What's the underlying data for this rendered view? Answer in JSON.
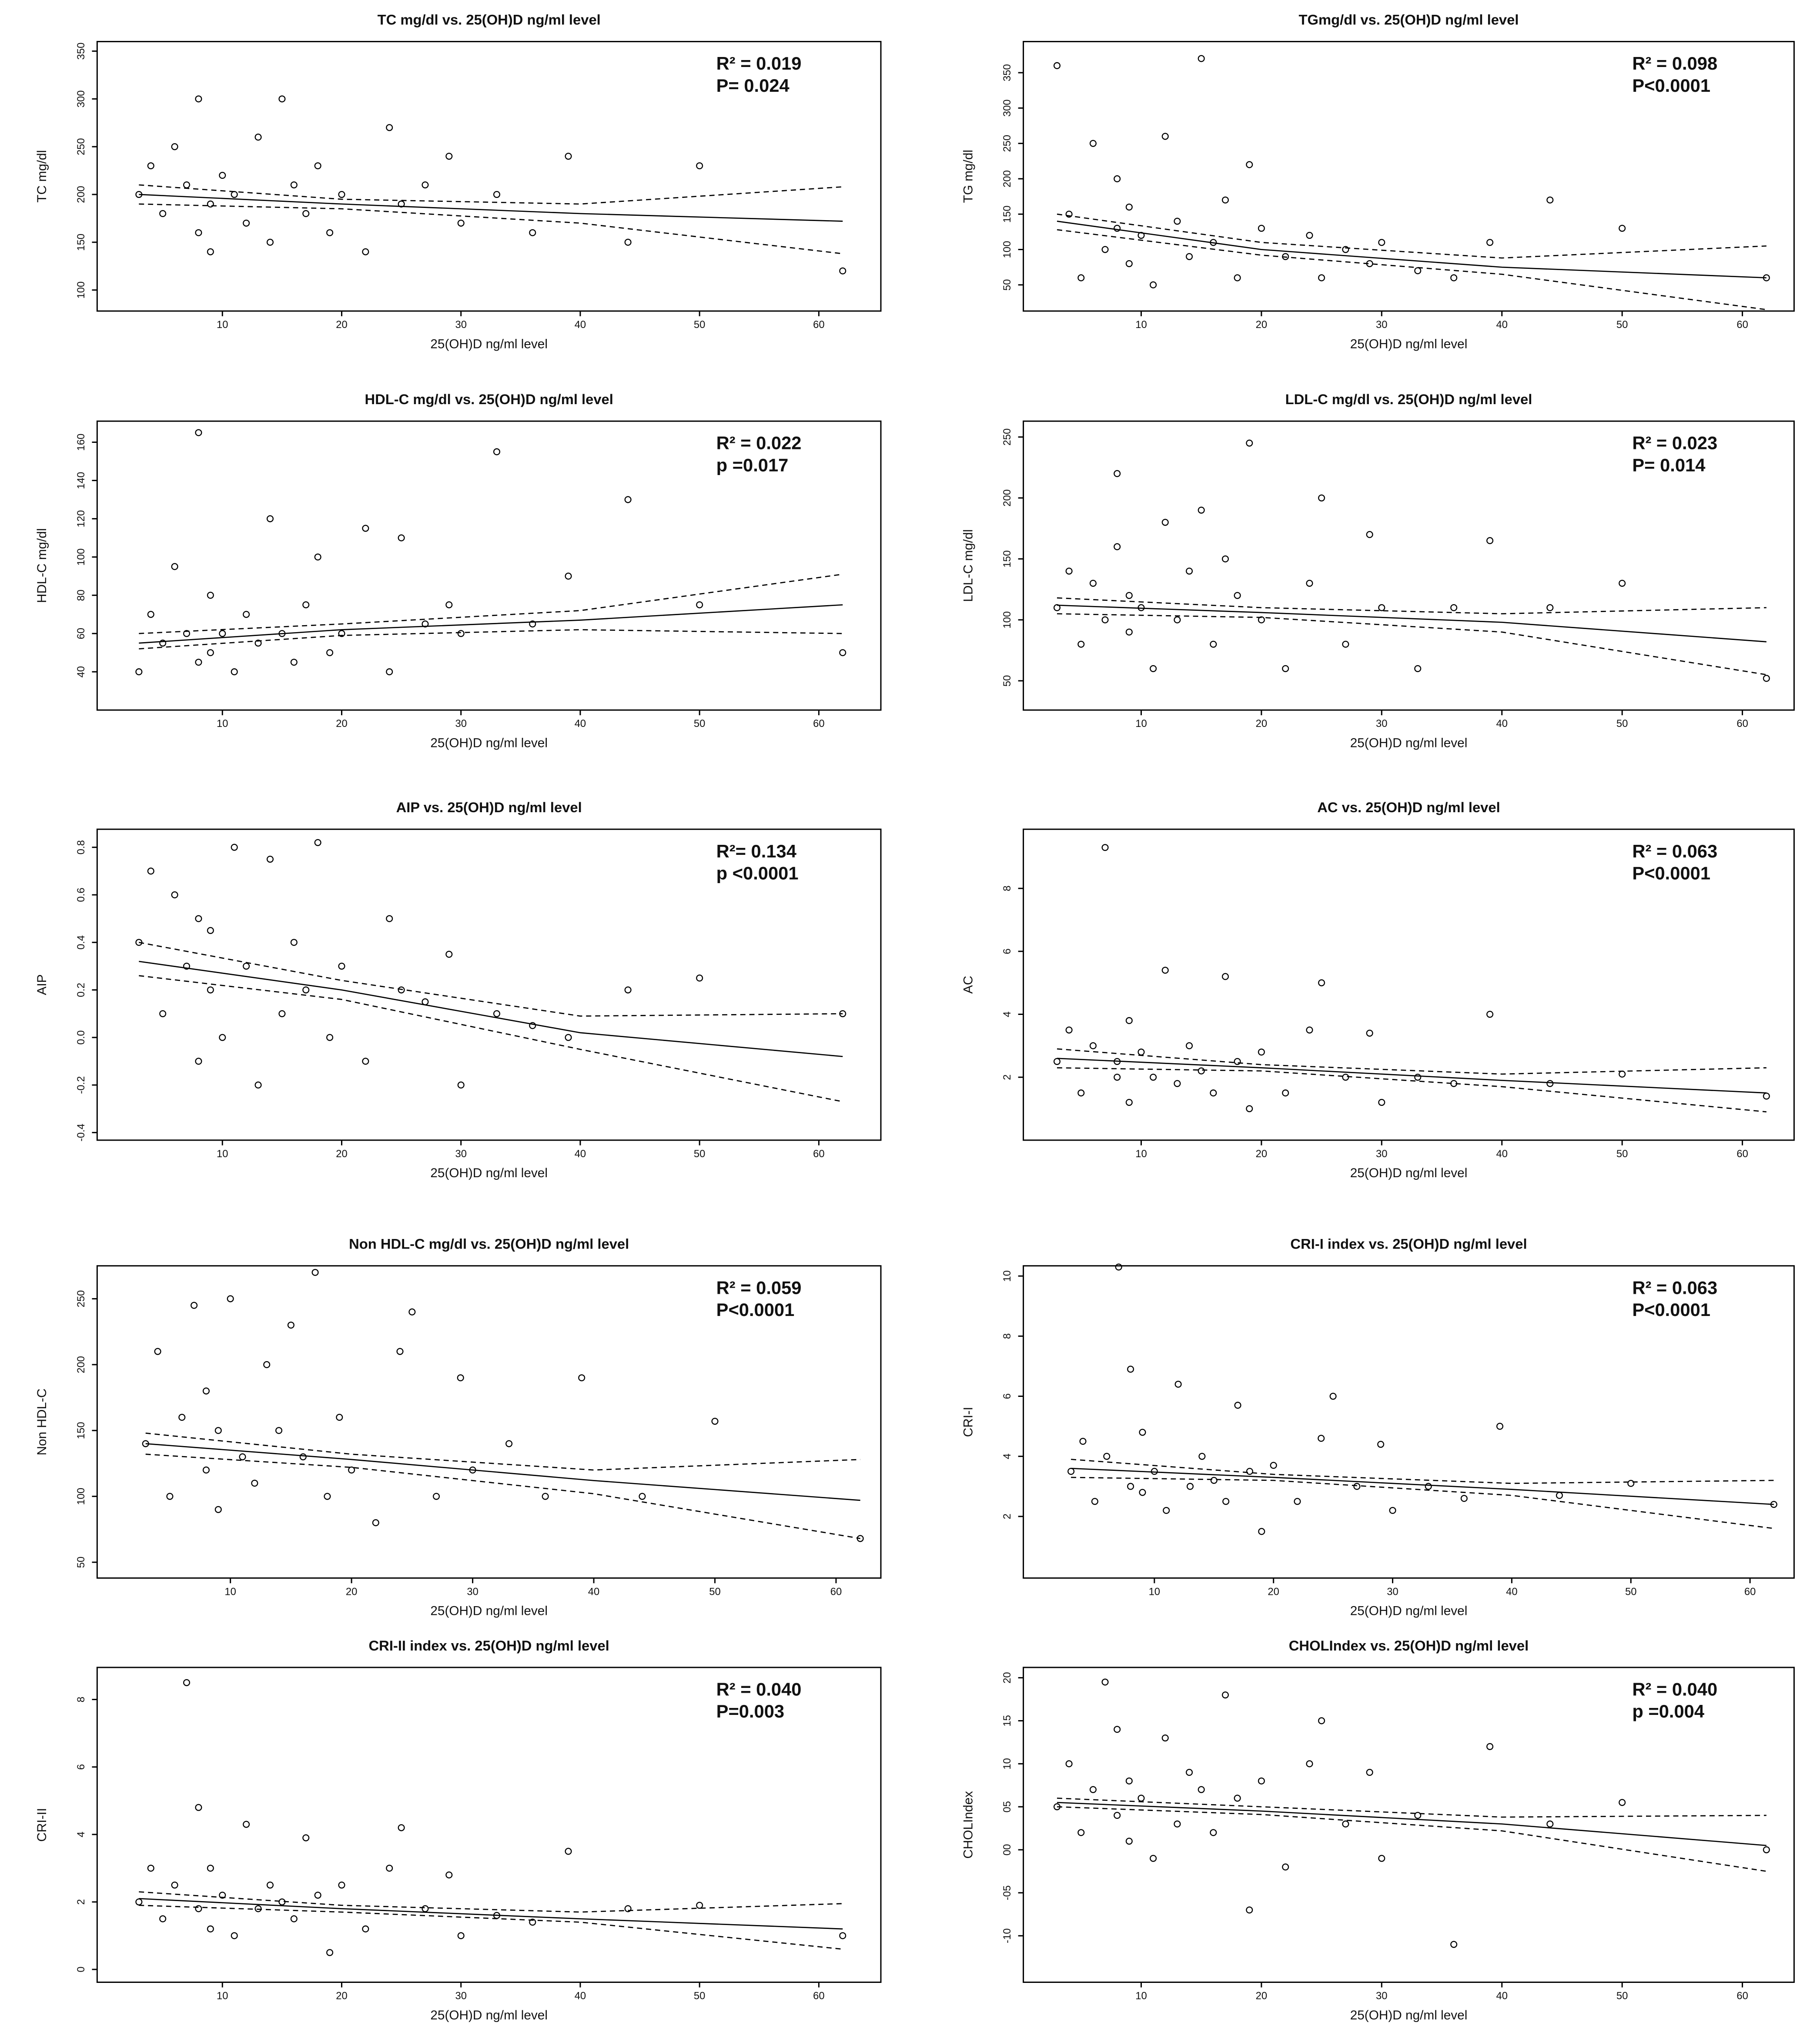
{
  "chart_data": [
    {
      "type": "scatter",
      "title": "TC mg/dl vs. 25(OH)D ng/ml level",
      "x_label": "25(OH)D ng/ml level",
      "y_label": "TC mg/dl",
      "annotations": [
        "R² = 0.019",
        "P= 0.024"
      ],
      "xlim": [
        -0.5,
        65.2
      ],
      "xticks": [
        10,
        20,
        30,
        40,
        50,
        60
      ],
      "ylim": [
        78,
        360
      ],
      "yticks": [
        100,
        150,
        200,
        250,
        300,
        350
      ],
      "x": [
        3,
        4,
        5,
        6,
        7,
        8,
        8,
        9,
        9,
        10,
        11,
        12,
        13,
        14,
        15,
        16,
        17,
        18,
        19,
        20,
        22,
        24,
        25,
        27,
        29,
        30,
        33,
        36,
        39,
        44,
        50,
        62
      ],
      "y": [
        200,
        230,
        180,
        250,
        210,
        160,
        300,
        190,
        140,
        220,
        200,
        170,
        260,
        150,
        300,
        210,
        180,
        230,
        160,
        200,
        140,
        270,
        190,
        210,
        240,
        170,
        200,
        160,
        240,
        150,
        230,
        120
      ],
      "fit_x": [
        3,
        20,
        40,
        62
      ],
      "fit": [
        200,
        190,
        180,
        172
      ],
      "ci_upper": [
        210,
        195,
        190,
        208
      ],
      "ci_lower": [
        190,
        185,
        170,
        138
      ]
    },
    {
      "type": "scatter",
      "title": "TGmg/dl vs. 25(OH)D ng/ml level",
      "x_label": "25(OH)D ng/ml level",
      "y_label": "TG mg/dl",
      "annotations": [
        "R² = 0.098",
        "P<0.0001"
      ],
      "xlim": [
        0.2,
        64.3
      ],
      "xticks": [
        10,
        20,
        30,
        40,
        50,
        60
      ],
      "ylim": [
        13,
        394
      ],
      "yticks": [
        50,
        100,
        150,
        200,
        250,
        300,
        350
      ],
      "x": [
        3,
        4,
        5,
        6,
        7,
        8,
        8,
        9,
        9,
        10,
        11,
        12,
        13,
        14,
        15,
        16,
        17,
        18,
        19,
        20,
        22,
        24,
        25,
        27,
        29,
        30,
        33,
        36,
        39,
        44,
        50,
        62
      ],
      "y": [
        360,
        150,
        60,
        250,
        100,
        130,
        200,
        80,
        160,
        120,
        50,
        260,
        140,
        90,
        370,
        110,
        170,
        60,
        220,
        130,
        90,
        120,
        60,
        100,
        80,
        110,
        70,
        60,
        110,
        170,
        130,
        60
      ],
      "fit_x": [
        3,
        20,
        40,
        62
      ],
      "fit": [
        140,
        100,
        75,
        60
      ],
      "ci_upper": [
        150,
        110,
        88,
        105
      ],
      "ci_lower": [
        128,
        92,
        65,
        15
      ]
    },
    {
      "type": "scatter",
      "title": "HDL-C mg/dl vs. 25(OH)D ng/ml level",
      "x_label": "25(OH)D ng/ml level",
      "y_label": "HDL-C mg/dl",
      "annotations": [
        "R² = 0.022",
        "p =0.017"
      ],
      "xlim": [
        -0.5,
        65.2
      ],
      "xticks": [
        10,
        20,
        30,
        40,
        50,
        60
      ],
      "ylim": [
        20,
        171
      ],
      "yticks": [
        40,
        60,
        80,
        100,
        120,
        140,
        160
      ],
      "x": [
        3,
        4,
        5,
        6,
        7,
        8,
        8,
        9,
        9,
        10,
        11,
        12,
        13,
        14,
        15,
        16,
        17,
        18,
        19,
        20,
        22,
        24,
        25,
        27,
        29,
        30,
        33,
        36,
        39,
        44,
        50,
        62
      ],
      "y": [
        40,
        70,
        55,
        95,
        60,
        45,
        165,
        50,
        80,
        60,
        40,
        70,
        55,
        120,
        60,
        45,
        75,
        100,
        50,
        60,
        115,
        40,
        110,
        65,
        75,
        60,
        155,
        65,
        90,
        130,
        75,
        50
      ],
      "fit_x": [
        3,
        20,
        40,
        62
      ],
      "fit": [
        55,
        62,
        67,
        75
      ],
      "ci_upper": [
        60,
        65,
        72,
        91
      ],
      "ci_lower": [
        52,
        59,
        62,
        60
      ]
    },
    {
      "type": "scatter",
      "title": "LDL-C mg/dl vs. 25(OH)D ng/ml level",
      "x_label": "25(OH)D ng/ml level",
      "y_label": "LDL-C mg/dl",
      "annotations": [
        "R² = 0.023",
        "P= 0.014"
      ],
      "xlim": [
        0.2,
        64.3
      ],
      "xticks": [
        10,
        20,
        30,
        40,
        50,
        60
      ],
      "ylim": [
        26,
        263
      ],
      "yticks": [
        50,
        100,
        150,
        200,
        250
      ],
      "x": [
        3,
        4,
        5,
        6,
        7,
        8,
        8,
        9,
        9,
        10,
        11,
        12,
        13,
        14,
        15,
        16,
        17,
        18,
        19,
        20,
        22,
        24,
        25,
        27,
        29,
        30,
        33,
        36,
        39,
        44,
        50,
        62
      ],
      "y": [
        110,
        140,
        80,
        130,
        100,
        160,
        220,
        90,
        120,
        110,
        60,
        180,
        100,
        140,
        190,
        80,
        150,
        120,
        245,
        100,
        60,
        130,
        200,
        80,
        170,
        110,
        60,
        110,
        165,
        110,
        130,
        52
      ],
      "fit_x": [
        3,
        20,
        40,
        62
      ],
      "fit": [
        112,
        106,
        98,
        82
      ],
      "ci_upper": [
        118,
        110,
        105,
        110
      ],
      "ci_lower": [
        105,
        102,
        90,
        55
      ]
    },
    {
      "type": "scatter",
      "title": "AIP vs. 25(OH)D ng/ml level",
      "x_label": "25(OH)D ng/ml level",
      "y_label": "AIP",
      "annotations": [
        "R²= 0.134",
        "p <0.0001"
      ],
      "xlim": [
        -0.5,
        65.2
      ],
      "xticks": [
        10,
        20,
        30,
        40,
        50,
        60
      ],
      "ylim": [
        -0.432,
        0.876
      ],
      "yticks": [
        -0.4,
        -0.2,
        {
          "value": 0,
          "label": "0.0"
        },
        0.2,
        0.4,
        0.6,
        0.8
      ],
      "x": [
        3,
        4,
        5,
        6,
        7,
        8,
        8,
        9,
        9,
        10,
        11,
        12,
        13,
        14,
        15,
        16,
        17,
        18,
        19,
        20,
        22,
        24,
        25,
        27,
        29,
        30,
        33,
        36,
        39,
        44,
        50,
        62
      ],
      "y": [
        0.4,
        0.7,
        0.1,
        0.6,
        0.3,
        -0.1,
        0.5,
        0.2,
        0.45,
        0.0,
        0.8,
        0.3,
        -0.2,
        0.75,
        0.1,
        0.4,
        0.2,
        0.82,
        0.0,
        0.3,
        -0.1,
        0.5,
        0.2,
        0.15,
        0.35,
        -0.2,
        0.1,
        0.05,
        0.0,
        0.2,
        0.25,
        0.1
      ],
      "fit_x": [
        3,
        20,
        40,
        62
      ],
      "fit": [
        0.32,
        0.2,
        0.02,
        -0.08
      ],
      "ci_upper": [
        0.4,
        0.24,
        0.09,
        0.1
      ],
      "ci_lower": [
        0.26,
        0.16,
        -0.05,
        -0.27
      ]
    },
    {
      "type": "scatter",
      "title": "AC vs. 25(OH)D ng/ml level",
      "x_label": "25(OH)D ng/ml level",
      "y_label": "AC",
      "annotations": [
        "R² = 0.063",
        "P<0.0001"
      ],
      "xlim": [
        0.2,
        64.3
      ],
      "xticks": [
        10,
        20,
        30,
        40,
        50,
        60
      ],
      "ylim": [
        0,
        9.88
      ],
      "yticks": [
        2,
        4,
        6,
        8
      ],
      "x": [
        3,
        4,
        5,
        6,
        7,
        8,
        8,
        9,
        9,
        10,
        11,
        12,
        13,
        14,
        15,
        16,
        17,
        18,
        19,
        20,
        22,
        24,
        25,
        27,
        29,
        30,
        33,
        36,
        39,
        44,
        50,
        62
      ],
      "y": [
        2.5,
        3.5,
        1.5,
        3.0,
        9.3,
        2.0,
        2.5,
        3.8,
        1.2,
        2.8,
        2.0,
        5.4,
        1.8,
        3.0,
        2.2,
        1.5,
        5.2,
        2.5,
        1.0,
        2.8,
        1.5,
        3.5,
        5.0,
        2.0,
        3.4,
        1.2,
        2.0,
        1.8,
        4.0,
        1.8,
        2.1,
        1.4
      ],
      "fit_x": [
        3,
        20,
        40,
        62
      ],
      "fit": [
        2.6,
        2.3,
        1.9,
        1.5
      ],
      "ci_upper": [
        2.9,
        2.4,
        2.1,
        2.3
      ],
      "ci_lower": [
        2.3,
        2.2,
        1.7,
        0.9
      ]
    },
    {
      "type": "scatter",
      "title": "Non HDL-C mg/dl vs. 25(OH)D ng/ml level",
      "x_label": "25(OH)D ng/ml level",
      "y_label": "Non HDL-C",
      "annotations": [
        "R² = 0.059",
        "P<0.0001"
      ],
      "xlim": [
        -1,
        63.7
      ],
      "xticks": [
        10,
        20,
        30,
        40,
        50,
        60
      ],
      "ylim": [
        38,
        275
      ],
      "yticks": [
        50,
        100,
        150,
        200,
        250
      ],
      "x": [
        3,
        4,
        5,
        6,
        7,
        8,
        8,
        9,
        9,
        10,
        11,
        12,
        13,
        14,
        15,
        16,
        17,
        18,
        19,
        20,
        22,
        24,
        25,
        27,
        29,
        30,
        33,
        36,
        39,
        44,
        50,
        62
      ],
      "y": [
        140,
        210,
        100,
        160,
        245,
        120,
        180,
        90,
        150,
        250,
        130,
        110,
        200,
        150,
        230,
        130,
        270,
        100,
        160,
        120,
        80,
        210,
        240,
        100,
        190,
        120,
        140,
        100,
        190,
        100,
        157,
        68
      ],
      "fit_x": [
        3,
        20,
        40,
        62
      ],
      "fit": [
        140,
        128,
        112,
        97
      ],
      "ci_upper": [
        148,
        132,
        120,
        128
      ],
      "ci_lower": [
        132,
        122,
        102,
        68
      ]
    },
    {
      "type": "scatter",
      "title": "CRI-I index vs. 25(OH)D ng/ml level",
      "x_label": "25(OH)D ng/ml level",
      "y_label": "CRI-I",
      "annotations": [
        "R² = 0.063",
        "P<0.0001"
      ],
      "xlim": [
        -1,
        63.7
      ],
      "xticks": [
        10,
        20,
        30,
        40,
        50,
        60
      ],
      "ylim": [
        -0.05,
        10.34
      ],
      "yticks": [
        2,
        4,
        6,
        8,
        10
      ],
      "x": [
        3,
        4,
        5,
        6,
        7,
        8,
        8,
        9,
        9,
        10,
        11,
        12,
        13,
        14,
        15,
        16,
        17,
        18,
        19,
        20,
        22,
        24,
        25,
        27,
        29,
        30,
        33,
        36,
        39,
        44,
        50,
        62
      ],
      "y": [
        3.5,
        4.5,
        2.5,
        4.0,
        10.3,
        3.0,
        6.9,
        2.8,
        4.8,
        3.5,
        2.2,
        6.4,
        3.0,
        4.0,
        3.2,
        2.5,
        5.7,
        3.5,
        1.5,
        3.7,
        2.5,
        4.6,
        6.0,
        3.0,
        4.4,
        2.2,
        3.0,
        2.6,
        5.0,
        2.7,
        3.1,
        2.4
      ],
      "fit_x": [
        3,
        20,
        40,
        62
      ],
      "fit": [
        3.6,
        3.3,
        2.9,
        2.4
      ],
      "ci_upper": [
        3.9,
        3.4,
        3.1,
        3.2
      ],
      "ci_lower": [
        3.3,
        3.2,
        2.7,
        1.6
      ]
    },
    {
      "type": "scatter",
      "title": "CRI-II index vs. 25(OH)D ng/ml level",
      "x_label": "25(OH)D ng/ml level",
      "y_label": "CRI-II",
      "annotations": [
        "R² = 0.040",
        "P=0.003"
      ],
      "xlim": [
        -0.5,
        65.2
      ],
      "xticks": [
        10,
        20,
        30,
        40,
        50,
        60
      ],
      "ylim": [
        -0.38,
        8.95
      ],
      "yticks": [
        0,
        2,
        4,
        6,
        8
      ],
      "x": [
        3,
        4,
        5,
        6,
        7,
        8,
        8,
        9,
        9,
        10,
        11,
        12,
        13,
        14,
        15,
        16,
        17,
        18,
        19,
        20,
        22,
        24,
        25,
        27,
        29,
        30,
        33,
        36,
        39,
        44,
        50,
        62
      ],
      "y": [
        2.0,
        3.0,
        1.5,
        2.5,
        8.5,
        1.8,
        4.8,
        1.2,
        3.0,
        2.2,
        1.0,
        4.3,
        1.8,
        2.5,
        2.0,
        1.5,
        3.9,
        2.2,
        0.5,
        2.5,
        1.2,
        3.0,
        4.2,
        1.8,
        2.8,
        1.0,
        1.6,
        1.4,
        3.5,
        1.8,
        1.9,
        1.0
      ],
      "fit_x": [
        3,
        20,
        40,
        62
      ],
      "fit": [
        2.1,
        1.8,
        1.5,
        1.2
      ],
      "ci_upper": [
        2.3,
        1.9,
        1.7,
        1.95
      ],
      "ci_lower": [
        1.9,
        1.7,
        1.4,
        0.6
      ]
    },
    {
      "type": "scatter",
      "title": "CHOLIndex vs. 25(OH)D ng/ml level",
      "x_label": "25(OH)D ng/ml level",
      "y_label": "CHOLIndex",
      "annotations": [
        "R² = 0.040",
        "p =0.004"
      ],
      "xlim": [
        0.2,
        64.3
      ],
      "xticks": [
        10,
        20,
        30,
        40,
        50,
        60
      ],
      "ylim": [
        -15.4,
        21.2
      ],
      "yticks": [
        -10,
        {
          "value": -5,
          "label": "-05"
        },
        {
          "value": 0,
          "label": "00"
        },
        {
          "value": 5,
          "label": "05"
        },
        10,
        15,
        20
      ],
      "x": [
        3,
        4,
        5,
        6,
        7,
        8,
        8,
        9,
        9,
        10,
        11,
        12,
        13,
        14,
        15,
        16,
        17,
        18,
        19,
        20,
        22,
        24,
        25,
        27,
        29,
        30,
        33,
        36,
        39,
        44,
        50,
        62
      ],
      "y": [
        5,
        10,
        2,
        7,
        19.5,
        4,
        14,
        1,
        8,
        6,
        -1,
        13,
        3,
        9,
        7,
        2,
        18,
        6,
        -7,
        8,
        -2,
        10,
        15,
        3,
        9,
        -1,
        4,
        -11,
        12,
        3,
        5.5,
        0
      ],
      "fit_x": [
        3,
        20,
        40,
        62
      ],
      "fit": [
        5.5,
        4.5,
        3,
        0.5
      ],
      "ci_upper": [
        6,
        5,
        3.8,
        4
      ],
      "ci_lower": [
        5,
        4.1,
        2.2,
        -2.5
      ]
    }
  ]
}
